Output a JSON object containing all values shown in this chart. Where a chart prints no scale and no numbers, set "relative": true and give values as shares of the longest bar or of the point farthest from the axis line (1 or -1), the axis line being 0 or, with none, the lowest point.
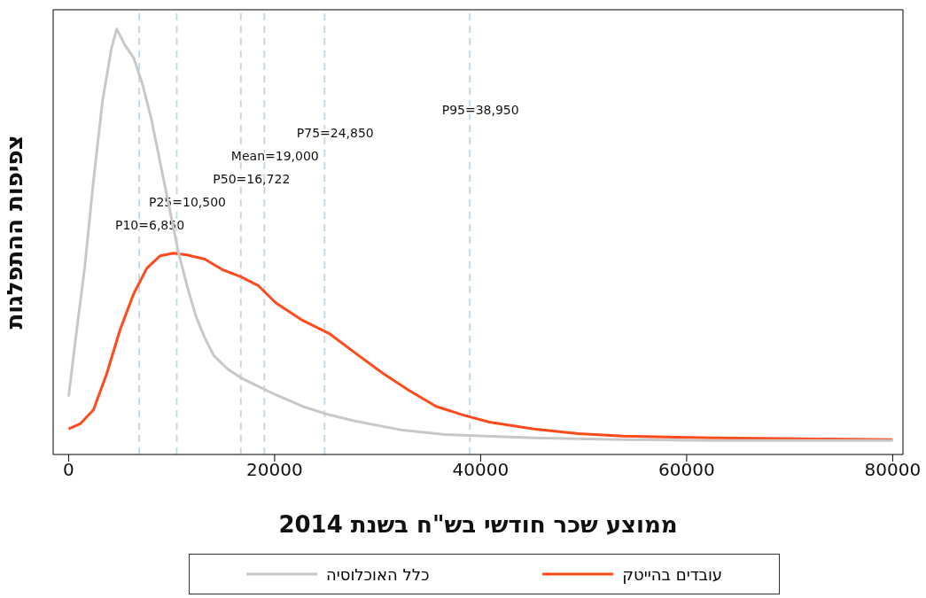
{
  "chart_data": {
    "type": "line",
    "relative": true,
    "xlabel": "ממוצע שכר חודשי בש\"ח בשנת 2014",
    "ylabel": "צפיפות ההתפלגות",
    "xlim": [
      -1500,
      81000
    ],
    "xticks": [
      0,
      20000,
      40000,
      60000,
      80000
    ],
    "legend": "bottom",
    "marker": "none",
    "line_style": "solid",
    "series": [
      {
        "name": "עובדים בהייטק",
        "color": "#ff4a1c",
        "x": [
          0,
          1123,
          2419,
          3715,
          5011,
          6307,
          7603,
          8898,
          10194,
          11490,
          13218,
          14946,
          16674,
          18402,
          20130,
          22721,
          25313,
          27905,
          30496,
          33088,
          35680,
          38272,
          40864,
          45184,
          49503,
          53823,
          62462,
          71102,
          80000
        ],
        "values": [
          0.06,
          0.072,
          0.105,
          0.191,
          0.294,
          0.377,
          0.438,
          0.467,
          0.473,
          0.469,
          0.459,
          0.434,
          0.418,
          0.397,
          0.356,
          0.315,
          0.284,
          0.237,
          0.191,
          0.15,
          0.113,
          0.093,
          0.076,
          0.06,
          0.049,
          0.043,
          0.039,
          0.037,
          0.035
        ]
      },
      {
        "name": "כלל האוכלוסיה",
        "color": "#c8c8c8",
        "x": [
          0,
          691,
          1555,
          2419,
          3283,
          4147,
          4665,
          5443,
          6307,
          7171,
          8035,
          8898,
          9762,
          10626,
          11490,
          12354,
          13218,
          14082,
          15378,
          16674,
          18402,
          20130,
          22721,
          25313,
          27905,
          32225,
          36544,
          45184,
          53823,
          62462,
          80000
        ],
        "values": [
          0.136,
          0.274,
          0.438,
          0.644,
          0.829,
          0.953,
          1,
          0.963,
          0.932,
          0.87,
          0.788,
          0.685,
          0.582,
          0.479,
          0.397,
          0.325,
          0.274,
          0.233,
          0.202,
          0.181,
          0.16,
          0.14,
          0.113,
          0.093,
          0.078,
          0.058,
          0.047,
          0.039,
          0.035,
          0.033,
          0.033
        ]
      }
    ],
    "ref_lines": [
      {
        "axis": "x",
        "value": 6850,
        "label": "P10=6,850",
        "color": "#c5dbe6",
        "line_style": "dashed"
      },
      {
        "axis": "x",
        "value": 10500,
        "label": "P25=10,500",
        "color": "#c5dbe6",
        "line_style": "dashed"
      },
      {
        "axis": "x",
        "value": 16722,
        "label": "P50=16,722",
        "color": "#c5dbe6",
        "line_style": "dashed"
      },
      {
        "axis": "x",
        "value": 19000,
        "label": "Mean=19,000",
        "color": "#c5dbe6",
        "line_style": "dashed"
      },
      {
        "axis": "x",
        "value": 24850,
        "label": "P75=24,850",
        "color": "#c5dbe6",
        "line_style": "dashed"
      },
      {
        "axis": "x",
        "value": 38950,
        "label": "P95=38,950",
        "color": "#c5dbe6",
        "line_style": "dashed"
      }
    ]
  }
}
